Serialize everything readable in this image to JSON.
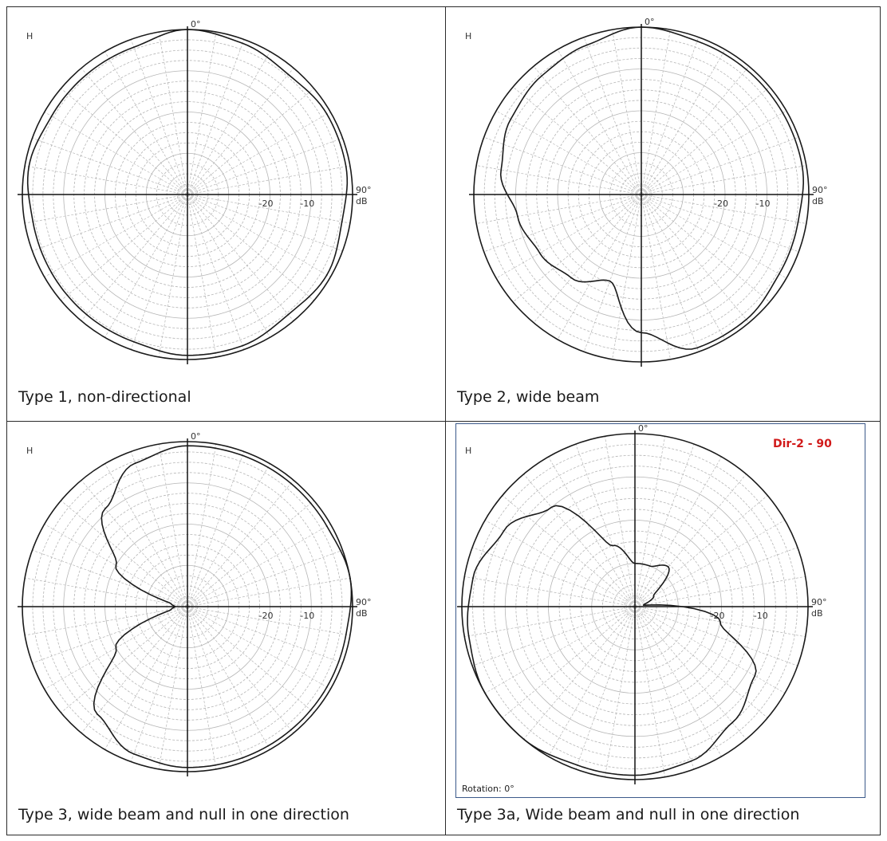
{
  "panels": [
    {
      "caption": "Type 1, non-directional",
      "corner_label": "H",
      "angle_top": "0°",
      "angle_right": "90°",
      "db_unit": "dB",
      "ring_labels": [
        "-20",
        "-10"
      ]
    },
    {
      "caption": "Type 2, wide beam",
      "corner_label": "H",
      "angle_top": "0°",
      "angle_right": "90°",
      "db_unit": "dB",
      "ring_labels": [
        "-20",
        "-10"
      ]
    },
    {
      "caption": "Type 3, wide beam and null in one direction",
      "corner_label": "H",
      "angle_top": "0°",
      "angle_right": "90°",
      "db_unit": "dB",
      "ring_labels": [
        "-20",
        "-10"
      ]
    },
    {
      "caption": "Type 3a, Wide beam and null in one direction",
      "corner_label": "H",
      "angle_top": "0°",
      "angle_right": "90°",
      "db_unit": "dB",
      "ring_labels": [
        "-20",
        "-10"
      ],
      "tag": "Dir-2 - 90",
      "rotation": "Rotation: 0°"
    }
  ],
  "colors": {
    "tag": "#d11a1a",
    "frame": "#3b5a8a",
    "grid": "#b5b5b5",
    "trace": "#1a1a1a"
  },
  "chart_data": [
    {
      "type": "polar",
      "title": "",
      "r_axis": {
        "unit": "dB",
        "range": [
          -40,
          0
        ],
        "tick_labels": [
          -20,
          -10
        ]
      },
      "theta_axis": {
        "direction": "clockwise",
        "zero": "top",
        "labels": [
          "0°",
          "90°"
        ]
      },
      "series": [
        {
          "angles": [
            0,
            20,
            40,
            60,
            80,
            100,
            120,
            140,
            160,
            180,
            200,
            220,
            240,
            260,
            280,
            300,
            320,
            340
          ],
          "values": [
            0,
            -1,
            -2,
            -1,
            -1,
            -2,
            -1,
            -2,
            -1,
            -1,
            -2,
            -2,
            -2,
            -2,
            -1,
            -2,
            -2,
            -2
          ]
        }
      ]
    },
    {
      "type": "polar",
      "title": "",
      "r_axis": {
        "unit": "dB",
        "range": [
          -40,
          0
        ],
        "tick_labels": [
          -20,
          -10
        ]
      },
      "theta_axis": {
        "direction": "clockwise",
        "zero": "top",
        "labels": [
          "0°",
          "90°"
        ]
      },
      "series": [
        {
          "angles": [
            0,
            20,
            40,
            60,
            80,
            100,
            120,
            140,
            160,
            180,
            200,
            220,
            240,
            260,
            280,
            300,
            320,
            340
          ],
          "values": [
            0,
            -1,
            -1,
            -1,
            -1,
            -2,
            -2,
            -1,
            -1,
            -7,
            -18,
            -14,
            -12,
            -10,
            -6,
            -4,
            -3,
            -2
          ]
        }
      ]
    },
    {
      "type": "polar",
      "title": "",
      "r_axis": {
        "unit": "dB",
        "range": [
          -40,
          0
        ],
        "tick_labels": [
          -20,
          -10
        ]
      },
      "theta_axis": {
        "direction": "clockwise",
        "zero": "top",
        "labels": [
          "0°",
          "90°"
        ]
      },
      "series": [
        {
          "angles": [
            0,
            20,
            40,
            60,
            80,
            100,
            120,
            140,
            160,
            180,
            200,
            220,
            240,
            260,
            270,
            280,
            300,
            320,
            340
          ],
          "values": [
            -1,
            -1,
            -1,
            -1,
            0,
            -1,
            -1,
            -1,
            -1,
            -1,
            -2,
            -6,
            -20,
            -36,
            -37,
            -36,
            -20,
            -9,
            -3
          ]
        }
      ]
    },
    {
      "type": "polar",
      "title": "",
      "r_axis": {
        "unit": "dB",
        "range": [
          -40,
          0
        ],
        "tick_labels": [
          -20,
          -10
        ]
      },
      "theta_axis": {
        "direction": "clockwise",
        "zero": "top",
        "labels": [
          "0°",
          "90°"
        ]
      },
      "series": [
        {
          "angles": [
            0,
            20,
            40,
            60,
            80,
            100,
            120,
            140,
            160,
            180,
            200,
            220,
            240,
            260,
            280,
            300,
            320,
            340
          ],
          "values": [
            -30,
            -30,
            -28,
            -35,
            -38,
            -20,
            -8,
            -5,
            -2,
            -1,
            -1,
            0,
            0,
            -1,
            -2,
            -5,
            -10,
            -25
          ]
        }
      ]
    }
  ]
}
